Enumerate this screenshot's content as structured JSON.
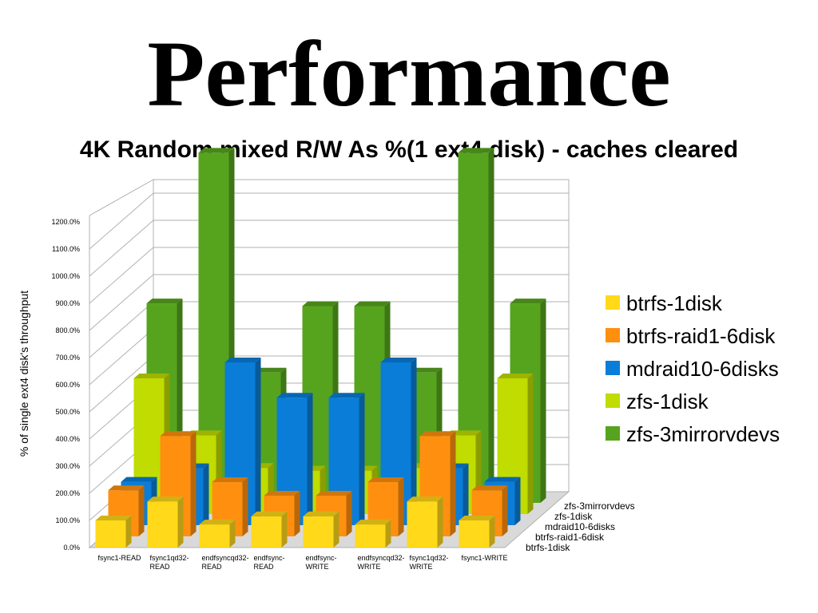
{
  "page_title": "Performance",
  "chart_data": {
    "type": "bar",
    "title": "4K Random mixed R/W As %(1 ext4 disk) - caches cleared",
    "ylabel": "% of single ext4 disk's throughput",
    "xlabel": "",
    "ylim": [
      0,
      1300
    ],
    "y_ticks": [
      "0.0%",
      "100.0%",
      "200.0%",
      "300.0%",
      "400.0%",
      "500.0%",
      "600.0%",
      "700.0%",
      "800.0%",
      "900.0%",
      "1000.0%",
      "1100.0%",
      "1200.0%"
    ],
    "categories": [
      [
        "fsync1-READ"
      ],
      [
        "fsync1qd32-",
        "READ"
      ],
      [
        "endfsyncqd32-",
        "READ"
      ],
      [
        "endfsync-",
        "READ"
      ],
      [
        "endfsync-",
        "WRITE"
      ],
      [
        "endfsyncqd32-",
        "WRITE"
      ],
      [
        "fsync1qd32-",
        "WRITE"
      ],
      [
        "fsync1-WRITE"
      ]
    ],
    "series": [
      {
        "name": "btrfs-1disk",
        "color": "#FFD91A",
        "values": [
          100,
          170,
          85,
          115,
          115,
          85,
          170,
          100
        ]
      },
      {
        "name": "btrfs-raid1-6disk",
        "color": "#FF900F",
        "values": [
          170,
          370,
          200,
          150,
          150,
          200,
          370,
          170
        ]
      },
      {
        "name": "mdraid10-6disks",
        "color": "#0A7DD8",
        "values": [
          160,
          210,
          600,
          470,
          470,
          600,
          210,
          160
        ]
      },
      {
        "name": "zfs-1disk",
        "color": "#C0DC00",
        "values": [
          500,
          290,
          170,
          160,
          160,
          170,
          290,
          500
        ]
      },
      {
        "name": "zfs-3mirrorvdevs",
        "color": "#56A41E",
        "values": [
          735,
          1290,
          480,
          725,
          725,
          480,
          1290,
          735
        ]
      }
    ],
    "depth_labels": [
      "zfs-3mirrorvdevs",
      "zfs-1disk",
      "mdraid10-6disks",
      "btrfs-raid1-6disk",
      "btrfs-1disk"
    ],
    "legend": [
      "btrfs-1disk",
      "btrfs-raid1-6disk",
      "mdraid10-6disks",
      "zfs-1disk",
      "zfs-3mirrorvdevs"
    ],
    "legend_position": "right",
    "grid": true
  }
}
